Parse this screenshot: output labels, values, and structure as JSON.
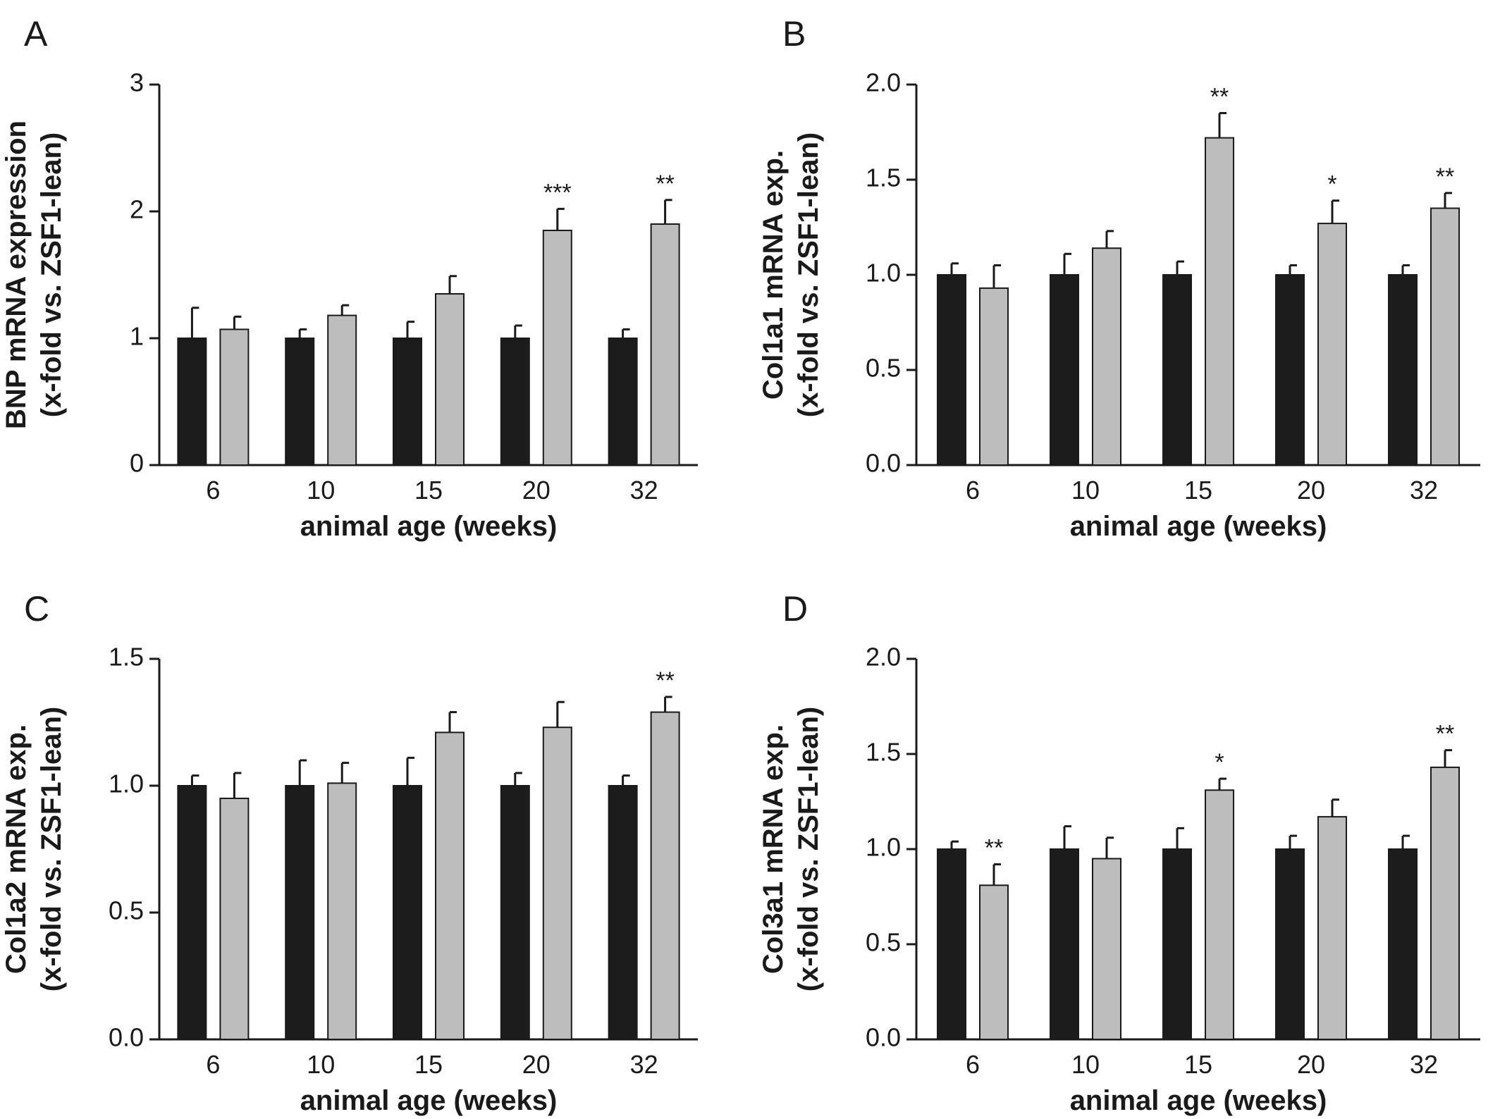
{
  "figure": {
    "colors": {
      "lean": "#1c1c1c",
      "obese": "#bdbdbd",
      "ink": "#1a1a1a",
      "bar_stroke": "#1a1a1a"
    }
  },
  "chart_data": [
    {
      "panel": "A",
      "type": "bar",
      "xlabel": "animal age (weeks)",
      "ylabel": [
        "BNP mRNA expression",
        "(x-fold vs. ZSF1-lean)"
      ],
      "categories": [
        "6",
        "10",
        "15",
        "20",
        "32"
      ],
      "ylim": [
        0,
        3
      ],
      "yticks": [
        "0",
        "1",
        "2",
        "3"
      ],
      "series": [
        {
          "values": [
            1.0,
            1.0,
            1.0,
            1.0,
            1.0
          ],
          "errors": [
            0.24,
            0.07,
            0.13,
            0.1,
            0.07
          ]
        },
        {
          "values": [
            1.07,
            1.18,
            1.35,
            1.85,
            1.9
          ],
          "errors": [
            0.1,
            0.08,
            0.14,
            0.17,
            0.19
          ]
        }
      ],
      "significance": [
        "",
        "",
        "",
        "***",
        "**"
      ]
    },
    {
      "panel": "B",
      "type": "bar",
      "xlabel": "animal age (weeks)",
      "ylabel": [
        "Col1a1 mRNA exp.",
        "(x-fold vs. ZSF1-lean)"
      ],
      "categories": [
        "6",
        "10",
        "15",
        "20",
        "32"
      ],
      "ylim": [
        0,
        2
      ],
      "yticks": [
        "0.0",
        "0.5",
        "1.0",
        "1.5",
        "2.0"
      ],
      "series": [
        {
          "values": [
            1.0,
            1.0,
            1.0,
            1.0,
            1.0
          ],
          "errors": [
            0.06,
            0.11,
            0.07,
            0.05,
            0.05
          ]
        },
        {
          "values": [
            0.93,
            1.14,
            1.72,
            1.27,
            1.35
          ],
          "errors": [
            0.12,
            0.09,
            0.13,
            0.12,
            0.08
          ]
        }
      ],
      "significance": [
        "",
        "",
        "**",
        "*",
        "**"
      ]
    },
    {
      "panel": "C",
      "type": "bar",
      "xlabel": "animal age (weeks)",
      "ylabel": [
        "Col1a2 mRNA exp.",
        "(x-fold vs. ZSF1-lean)"
      ],
      "categories": [
        "6",
        "10",
        "15",
        "20",
        "32"
      ],
      "ylim": [
        0,
        1.5
      ],
      "yticks": [
        "0.0",
        "0.5",
        "1.0",
        "1.5"
      ],
      "series": [
        {
          "values": [
            1.0,
            1.0,
            1.0,
            1.0,
            1.0
          ],
          "errors": [
            0.04,
            0.1,
            0.11,
            0.05,
            0.04
          ]
        },
        {
          "values": [
            0.95,
            1.01,
            1.21,
            1.23,
            1.29
          ],
          "errors": [
            0.1,
            0.08,
            0.08,
            0.1,
            0.06
          ]
        }
      ],
      "significance": [
        "",
        "",
        "",
        "",
        "**"
      ]
    },
    {
      "panel": "D",
      "type": "bar",
      "xlabel": "animal age (weeks)",
      "ylabel": [
        "Col3a1 mRNA exp.",
        "(x-fold vs. ZSF1-lean)"
      ],
      "categories": [
        "6",
        "10",
        "15",
        "20",
        "32"
      ],
      "ylim": [
        0,
        2
      ],
      "yticks": [
        "0.0",
        "0.5",
        "1.0",
        "1.5",
        "2.0"
      ],
      "series": [
        {
          "values": [
            1.0,
            1.0,
            1.0,
            1.0,
            1.0
          ],
          "errors": [
            0.04,
            0.12,
            0.11,
            0.07,
            0.07
          ]
        },
        {
          "values": [
            0.81,
            0.95,
            1.31,
            1.17,
            1.43
          ],
          "errors": [
            0.11,
            0.11,
            0.06,
            0.09,
            0.09
          ]
        }
      ],
      "significance": [
        "**",
        "",
        "*",
        "",
        "**"
      ]
    }
  ]
}
